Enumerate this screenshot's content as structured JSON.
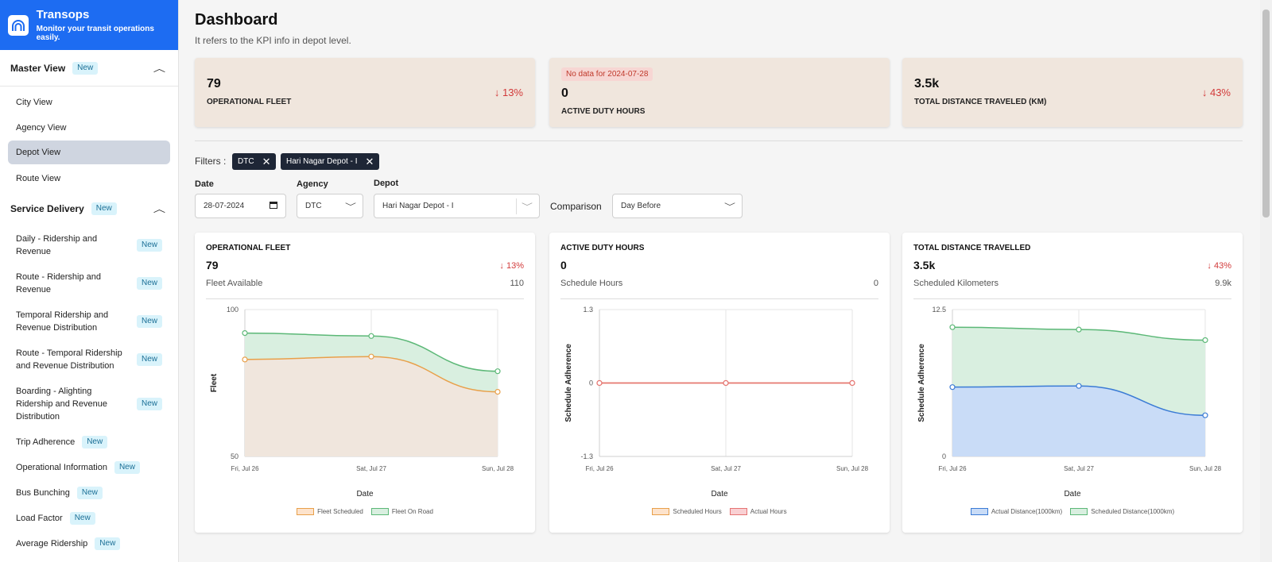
{
  "brand": {
    "title": "Transops",
    "subtitle": "Monitor your transit operations easily."
  },
  "sidebar": {
    "master": {
      "label": "Master View",
      "badge": "New"
    },
    "master_items": [
      "City View",
      "Agency View",
      "Depot View",
      "Route View"
    ],
    "service": {
      "label": "Service Delivery",
      "badge": "New"
    },
    "service_items": [
      {
        "label": "Daily - Ridership and Revenue",
        "badge": "New"
      },
      {
        "label": "Route - Ridership and Revenue",
        "badge": "New"
      },
      {
        "label": "Temporal Ridership and Revenue Distribution",
        "badge": "New"
      },
      {
        "label": "Route - Temporal Ridership and Revenue Distribution",
        "badge": "New"
      },
      {
        "label": "Boarding - Alighting Ridership and Revenue Distribution",
        "badge": "New"
      },
      {
        "label": "Trip Adherence",
        "badge": "New"
      },
      {
        "label": "Operational Information",
        "badge": "New"
      },
      {
        "label": "Bus Bunching",
        "badge": "New"
      },
      {
        "label": "Load Factor",
        "badge": "New"
      },
      {
        "label": "Average Ridership",
        "badge": "New"
      }
    ]
  },
  "header": {
    "title": "Dashboard",
    "subtitle": "It refers to the KPI info in depot level."
  },
  "kpis": [
    {
      "value": "79",
      "label": "OPERATIONAL FLEET",
      "change": "13%"
    },
    {
      "warning": "No data for 2024-07-28",
      "value": "0",
      "label": "ACTIVE DUTY HOURS"
    },
    {
      "value": "3.5k",
      "label": "TOTAL DISTANCE TRAVELED (KM)",
      "change": "43%"
    }
  ],
  "filters": {
    "label": "Filters :",
    "chips": [
      "DTC",
      "Hari Nagar Depot - I"
    ],
    "date_label": "Date",
    "date_value": "28-07-2024",
    "agency_label": "Agency",
    "agency_value": "DTC",
    "depot_label": "Depot",
    "depot_value": "Hari Nagar Depot - I",
    "comparison_label": "Comparison",
    "comparison_value": "Day Before"
  },
  "cards": [
    {
      "title": "OPERATIONAL FLEET",
      "value": "79",
      "change": "13%",
      "sub_label": "Fleet Available",
      "sub_value": "110"
    },
    {
      "title": "ACTIVE DUTY HOURS",
      "value": "0",
      "sub_label": "Schedule Hours",
      "sub_value": "0"
    },
    {
      "title": "TOTAL DISTANCE TRAVELLED",
      "value": "3.5k",
      "change": "43%",
      "sub_label": "Scheduled Kilometers",
      "sub_value": "9.9k"
    }
  ],
  "colors": {
    "brand": "#1d6cf2",
    "kpi_bg": "#f0e6dd",
    "negative": "#d23a3a",
    "orange": "#e8a04a",
    "green": "#5cb877",
    "blue": "#3a7bd5",
    "red": "#e57373"
  },
  "chart_data": [
    {
      "type": "area",
      "categories": [
        "Fri, Jul 26",
        "Sat, Jul 27",
        "Sun, Jul 28"
      ],
      "ylim": [
        50,
        100
      ],
      "yticks": [
        "100",
        "50"
      ],
      "ylabel": "Fleet",
      "xlabel": "Date",
      "series": [
        {
          "name": "Fleet Scheduled",
          "values": [
            83,
            84,
            72
          ],
          "color": "#e8a04a",
          "fill": "#f0e6dd"
        },
        {
          "name": "Fleet On Road",
          "values": [
            92,
            91,
            79
          ],
          "color": "#5cb877",
          "fill": "#d9efe0"
        }
      ]
    },
    {
      "type": "line",
      "categories": [
        "Fri, Jul 26",
        "Sat, Jul 27",
        "Sun, Jul 28"
      ],
      "ylim": [
        -1.3,
        1.3
      ],
      "yticks": [
        "1.3",
        "0",
        "-1.3"
      ],
      "ylabel": "Schedule Adherence",
      "xlabel": "Date",
      "series": [
        {
          "name": "Scheduled Hours",
          "values": [
            0,
            0,
            0
          ],
          "color": "#e8a04a",
          "fill": "#fde3cc"
        },
        {
          "name": "Actual Hours",
          "values": [
            0,
            0,
            0
          ],
          "color": "#e57373",
          "fill": "#f9d0d3"
        }
      ]
    },
    {
      "type": "area",
      "categories": [
        "Fri, Jul 26",
        "Sat, Jul 27",
        "Sun, Jul 28"
      ],
      "ylim": [
        0,
        12.5
      ],
      "yticks": [
        "12.5",
        "0"
      ],
      "ylabel": "Schedule Adherence",
      "xlabel": "Date",
      "series": [
        {
          "name": "Actual Distance(1000km)",
          "values": [
            5.9,
            6.0,
            3.5
          ],
          "color": "#3a7bd5",
          "fill": "#c9dcf7"
        },
        {
          "name": "Scheduled Distance(1000km)",
          "values": [
            11.0,
            10.8,
            9.9
          ],
          "color": "#5cb877",
          "fill": "#d9efe0"
        }
      ]
    }
  ]
}
